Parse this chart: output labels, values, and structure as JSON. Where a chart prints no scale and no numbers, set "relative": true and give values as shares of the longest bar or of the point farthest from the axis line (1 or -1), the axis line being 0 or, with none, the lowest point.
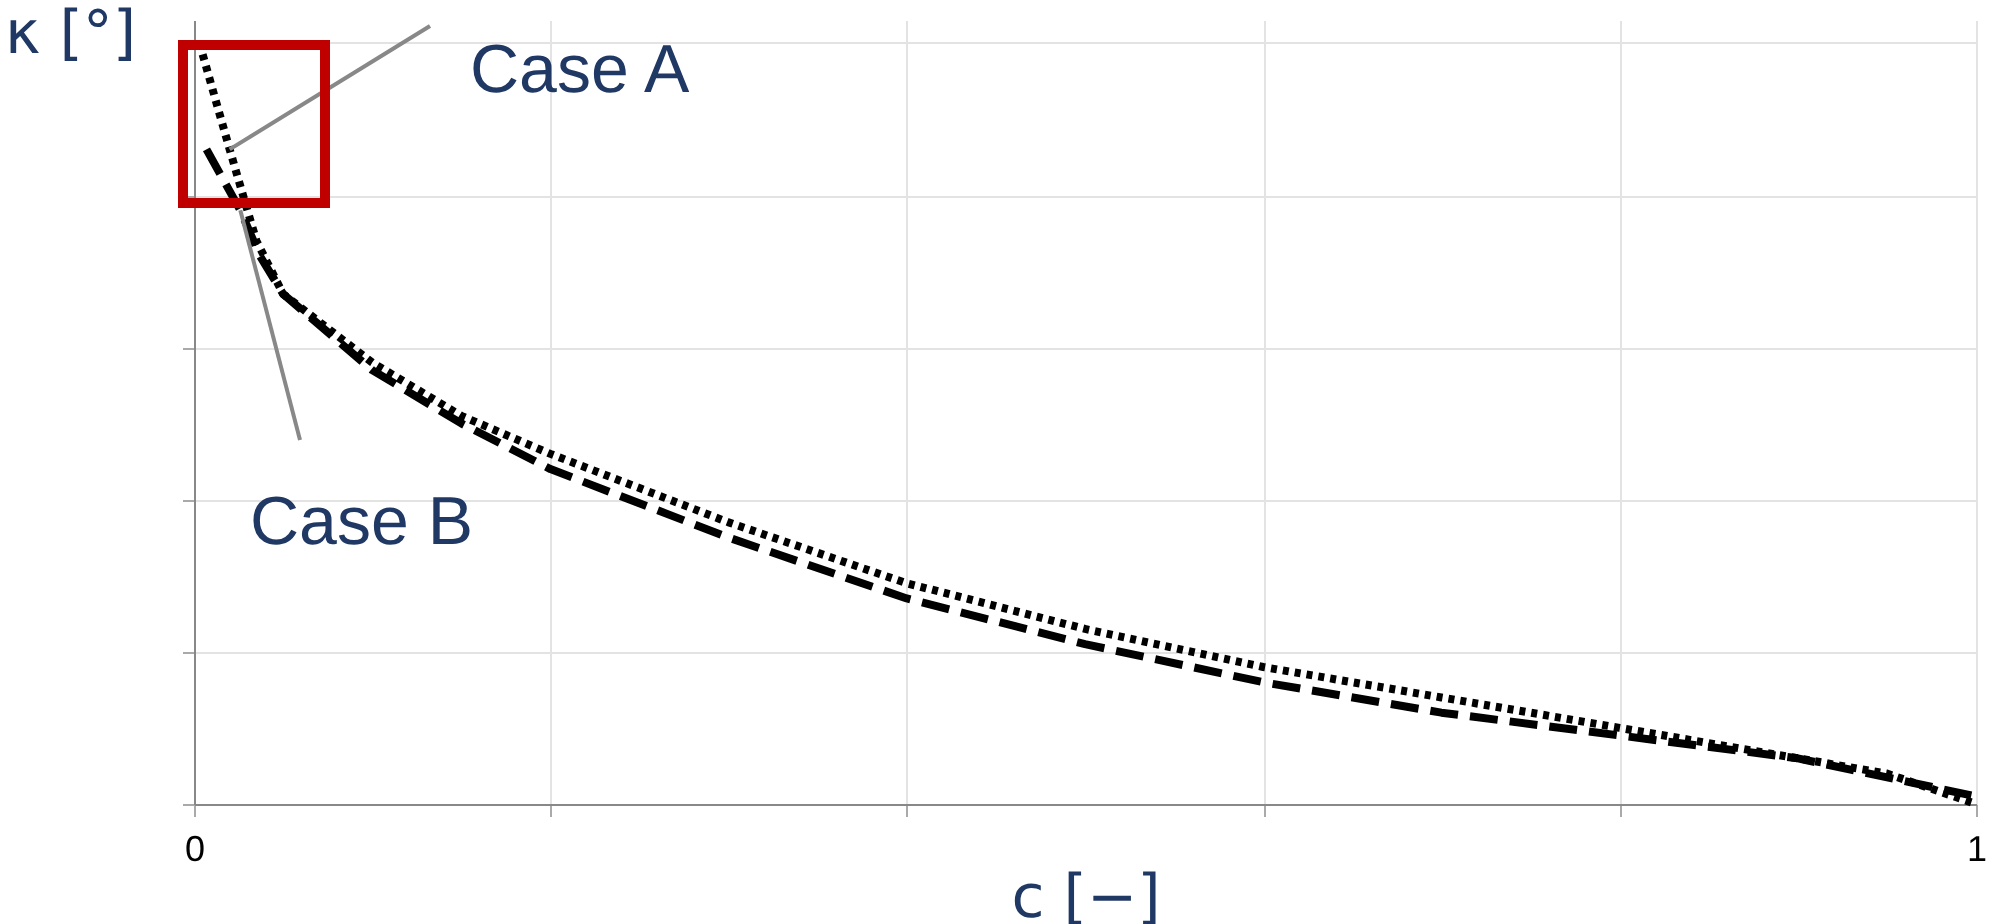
{
  "chart_data": {
    "type": "line",
    "xlabel": "c [−]",
    "ylabel": "κ [°]",
    "relative": true,
    "grid": true,
    "xlim": [
      0,
      1
    ],
    "xticks": [
      0,
      {
        "value": 0.2,
        "label": null
      },
      {
        "value": 0.4,
        "label": null
      },
      {
        "value": 0.6,
        "label": null
      },
      {
        "value": 0.8,
        "label": null
      },
      1
    ],
    "annotations": [
      {
        "text": "Case A",
        "x": 0.02,
        "y": 0.86
      },
      {
        "text": "Case B",
        "x": 0.026,
        "y": 0.78
      }
    ],
    "series": [
      {
        "color": "#000000",
        "line_style": "dotted",
        "x": [
          0.003,
          0.02,
          0.035,
          0.05,
          0.1,
          0.15,
          0.2,
          0.3,
          0.4,
          0.5,
          0.6,
          0.7,
          0.8,
          0.9,
          0.95,
          1.0
        ],
        "values": [
          1.0,
          0.86,
          0.74,
          0.67,
          0.58,
          0.51,
          0.46,
          0.37,
          0.29,
          0.23,
          0.18,
          0.14,
          0.1,
          0.06,
          0.04,
          0.0
        ]
      },
      {
        "color": "#000000",
        "line_style": "dashed",
        "x": [
          0.007,
          0.026,
          0.037,
          0.05,
          0.1,
          0.15,
          0.2,
          0.3,
          0.4,
          0.5,
          0.6,
          0.7,
          0.8,
          0.9,
          1.0
        ],
        "values": [
          0.86,
          0.78,
          0.72,
          0.67,
          0.57,
          0.5,
          0.44,
          0.35,
          0.27,
          0.21,
          0.16,
          0.12,
          0.09,
          0.06,
          0.01
        ]
      }
    ]
  }
}
